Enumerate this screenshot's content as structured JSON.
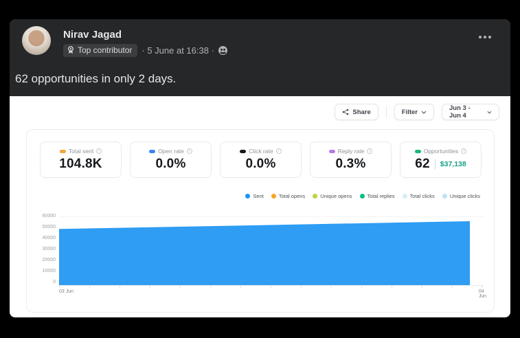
{
  "post": {
    "author": "Nirav Jagad",
    "badge": "Top contributor",
    "timestamp": "· 5 June at 16:38 ·",
    "text": "62 opportunities in only 2 days."
  },
  "toolbar": {
    "share_label": "Share",
    "filter_label": "Filter",
    "date_range": "Jun 3 - Jun 4"
  },
  "stats": [
    {
      "label": "Total sent",
      "value": "104.8K",
      "dot_color": "#f0a43a"
    },
    {
      "label": "Open rate",
      "value": "0.0%",
      "dot_color": "#3b82f6"
    },
    {
      "label": "Click rate",
      "value": "0.0%",
      "dot_color": "#1a1a1a"
    },
    {
      "label": "Reply rate",
      "value": "0.3%",
      "dot_color": "#b97ae8"
    },
    {
      "label": "Opportunities",
      "value": "62",
      "secondary_value": "$37,138",
      "dot_color": "#17b877",
      "secondary_color": "#14a085"
    }
  ],
  "legend": [
    {
      "label": "Sent",
      "color": "#1e93f4"
    },
    {
      "label": "Total opens",
      "color": "#f5a623"
    },
    {
      "label": "Unique opens",
      "color": "#b8d63a"
    },
    {
      "label": "Total replies",
      "color": "#0cbf7c"
    },
    {
      "label": "Total clicks",
      "color": "#d8edf9"
    },
    {
      "label": "Unique clicks",
      "color": "#bfe2f4"
    }
  ],
  "chart_data": {
    "type": "area",
    "title": "",
    "x": [
      "03 Jun",
      "04 Jun"
    ],
    "series": [
      {
        "name": "Sent",
        "color": "#2e9df3",
        "values": [
          49000,
          55800
        ]
      },
      {
        "name": "Total replies",
        "color": "#9fe6c0",
        "values": [
          160,
          180
        ]
      }
    ],
    "ylim": [
      0,
      60000
    ],
    "ytick_labels": [
      "60000",
      "50000",
      "40000",
      "30000",
      "20000",
      "10000",
      "0"
    ],
    "grid": "top-line-only",
    "legend_position": "top-right"
  }
}
